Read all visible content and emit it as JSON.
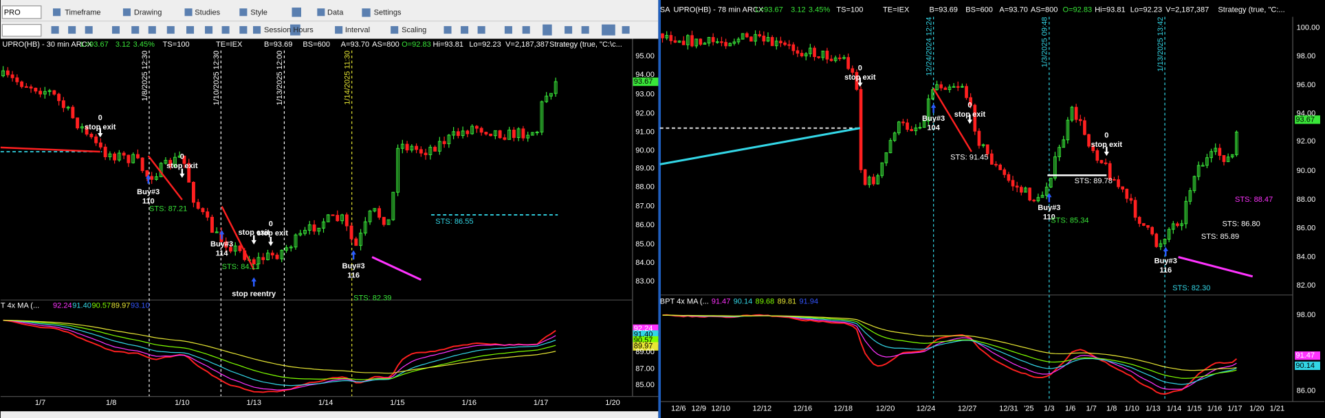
{
  "toolbar": {
    "symbol": "PRO",
    "row1": [
      "Timeframe",
      "Drawing",
      "Studies",
      "Style",
      "Data",
      "Settings"
    ],
    "row2": [
      "Session Hours",
      "Interval",
      "Scaling"
    ]
  },
  "left": {
    "header": [
      "UPRO(HB) - 30 min  ARCX",
      "L=93.67",
      "3.12",
      "3.45%",
      "TS=100",
      "TE=IEX",
      "B=93.69",
      "BS=600",
      "A=93.70",
      "AS=800",
      "O=92.83",
      "Hi=93.81",
      "Lo=92.23",
      "V=2,187,387",
      "Strategy (true, \"C:\\c..."
    ],
    "price_ticks": [
      "95.00",
      "94.00",
      "93.00",
      "92.00",
      "91.00",
      "90.00",
      "89.00",
      "88.00",
      "87.00",
      "86.00",
      "85.00",
      "84.00",
      "83.00"
    ],
    "last": "93.67",
    "ind_header": [
      "T 4x MA (...",
      "92.24",
      "91.40",
      "90.57",
      "89.97",
      "93.10"
    ],
    "ind_ticks": [
      "89.00",
      "87.00",
      "85.00"
    ],
    "ind_last": [
      "92.24",
      "91.40",
      "90.57",
      "89.97"
    ],
    "x_ticks": [
      "1/7",
      "1/8",
      "1/10",
      "1/13",
      "1/14",
      "1/15",
      "1/16",
      "1/17",
      "1/20"
    ],
    "dates": [
      "1/8/2025 12:30",
      "1/10/2025 12:30",
      "1/13/2025 12:00",
      "1/14/2025 11:30"
    ],
    "notes": [
      "0",
      "stop exit",
      "0",
      "stop exit",
      "Buy#3",
      "110",
      "STS: 87.21",
      "Buy#3",
      "114",
      "STS: 84.11",
      "stop exit",
      "0",
      "stop exit",
      "stop reentry",
      "Buy#3",
      "116",
      "STS: 86.55",
      "STS: 82.39"
    ]
  },
  "right": {
    "header": [
      "SA",
      "UPRO(HB) - 78 min  ARCX",
      "L=93.67",
      "3.12",
      "3.45%",
      "TS=100",
      "TE=IEX",
      "B=93.69",
      "BS=600",
      "A=93.70",
      "AS=800",
      "O=92.83",
      "Hi=93.81",
      "Lo=92.23",
      "V=2,187,387",
      "Strategy (true, \"C:..."
    ],
    "price_ticks": [
      "100.00",
      "98.00",
      "96.00",
      "94.00",
      "92.00",
      "90.00",
      "88.00",
      "86.00",
      "84.00",
      "82.00"
    ],
    "last": "93.67",
    "ind_header": [
      "BPT 4x MA (...",
      "91.47",
      "90.14",
      "89.68",
      "89.81",
      "91.94"
    ],
    "ind_ticks": [
      "98.00",
      "86.00"
    ],
    "ind_last": [
      "91.47",
      "90.14"
    ],
    "x_ticks": [
      "12/6",
      "12/9",
      "12/10",
      "12/12",
      "12/16",
      "12/18",
      "12/20",
      "12/24",
      "12/27",
      "12/31",
      "'25",
      "1/3",
      "1/6",
      "1/7",
      "1/8",
      "1/10",
      "1/13",
      "1/14",
      "1/15",
      "1/16",
      "1/17",
      "1/20",
      "1/21"
    ],
    "dates": [
      "12/24/2024 12:24",
      "1/3/2025 09:48",
      "1/13/2025 13:42"
    ],
    "notes": [
      "0",
      "stop exit",
      "Buy#3",
      "104",
      "0",
      "stop exit",
      "STS: 91.45",
      "STS: 89.78",
      "0",
      "stop exit",
      "Buy#3",
      "110",
      "STS: 85.34",
      "STS: 88.47",
      "STS: 86.80",
      "STS: 85.89",
      "Buy#3",
      "116",
      "STS: 82.30"
    ]
  }
}
